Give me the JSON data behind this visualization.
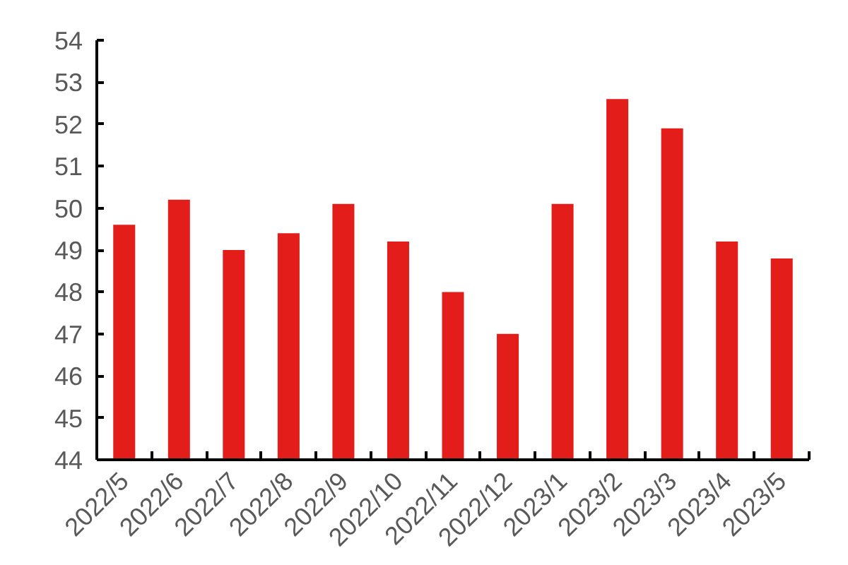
{
  "chart_data": {
    "type": "bar",
    "categories": [
      "2022/5",
      "2022/6",
      "2022/7",
      "2022/8",
      "2022/9",
      "2022/10",
      "2022/11",
      "2022/12",
      "2023/1",
      "2023/2",
      "2023/3",
      "2023/4",
      "2023/5"
    ],
    "values": [
      49.6,
      50.2,
      49.0,
      49.4,
      50.1,
      49.2,
      48.0,
      47.0,
      50.1,
      52.6,
      51.9,
      49.2,
      48.8
    ],
    "color": "#e31e1a",
    "ylim": [
      44,
      54
    ],
    "yticks": [
      44,
      45,
      46,
      47,
      48,
      49,
      50,
      51,
      52,
      53,
      54
    ],
    "grid": false
  }
}
